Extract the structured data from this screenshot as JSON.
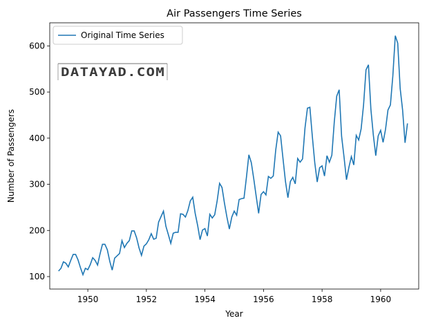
{
  "chart_data": {
    "type": "line",
    "title": "Air Passengers Time Series",
    "xlabel": "Year",
    "ylabel": "Number of Passengers",
    "x_ticks": [
      1950,
      1952,
      1954,
      1956,
      1958,
      1960
    ],
    "y_ticks": [
      100,
      200,
      300,
      400,
      500,
      600
    ],
    "xlim": [
      1948.7,
      1961.3
    ],
    "ylim": [
      73,
      650
    ],
    "grid": false,
    "legend_position": "top-left",
    "x_start": "1949-01",
    "x_step": "1 month",
    "series": [
      {
        "name": "Original Time Series",
        "color": "#1f77b4",
        "values": [
          112,
          118,
          132,
          129,
          121,
          135,
          148,
          148,
          136,
          119,
          104,
          118,
          115,
          126,
          141,
          135,
          125,
          149,
          170,
          170,
          158,
          133,
          114,
          140,
          145,
          150,
          178,
          163,
          172,
          178,
          199,
          199,
          184,
          162,
          146,
          166,
          171,
          180,
          193,
          181,
          183,
          218,
          230,
          242,
          209,
          191,
          172,
          194,
          196,
          196,
          236,
          235,
          229,
          243,
          264,
          272,
          237,
          211,
          180,
          201,
          204,
          188,
          235,
          227,
          234,
          264,
          302,
          293,
          259,
          229,
          203,
          229,
          242,
          233,
          267,
          269,
          270,
          315,
          364,
          347,
          312,
          274,
          237,
          278,
          284,
          277,
          317,
          313,
          318,
          374,
          413,
          405,
          355,
          306,
          271,
          306,
          315,
          301,
          356,
          348,
          355,
          422,
          465,
          467,
          404,
          347,
          305,
          336,
          340,
          318,
          362,
          348,
          363,
          435,
          491,
          505,
          404,
          359,
          310,
          337,
          360,
          342,
          406,
          396,
          420,
          472,
          548,
          559,
          463,
          407,
          362,
          405,
          417,
          391,
          419,
          461,
          472,
          535,
          622,
          606,
          508,
          461,
          390,
          432
        ]
      }
    ]
  },
  "watermark": {
    "text": "DATAYAD.COM"
  }
}
